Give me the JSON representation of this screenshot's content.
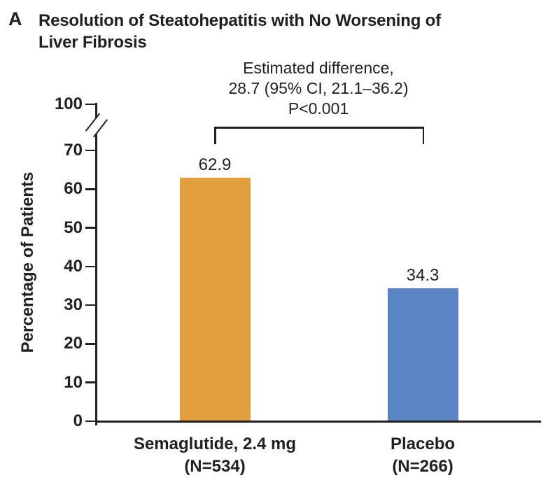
{
  "panel": {
    "label": "A",
    "title": "Resolution of Steatohepatitis with No Worsening of Liver Fibrosis"
  },
  "annotation": {
    "lines": [
      "Estimated difference,",
      "28.7 (95% CI, 21.1–36.2)",
      "P<0.001"
    ]
  },
  "bars": [
    {
      "label": "Semaglutide, 2.4 mg",
      "n": "(N=534)",
      "value": 62.9,
      "value_label": "62.9",
      "color": "#E29F3D"
    },
    {
      "label": "Placebo",
      "n": "(N=266)",
      "value": 34.3,
      "value_label": "34.3",
      "color": "#5B84C4"
    }
  ],
  "chart_data": {
    "type": "bar",
    "title": "Resolution of Steatohepatitis with No Worsening of Liver Fibrosis",
    "categories": [
      "Semaglutide, 2.4 mg (N=534)",
      "Placebo (N=266)"
    ],
    "values": [
      62.9,
      34.3
    ],
    "value_labels": [
      "62.9",
      "34.3"
    ],
    "xlabel": "",
    "ylabel": "Percentage of Patients",
    "ylim": [
      0,
      100
    ],
    "yticks": [
      0,
      10,
      20,
      30,
      40,
      50,
      60,
      70,
      100
    ],
    "y_axis_break_between": [
      70,
      100
    ],
    "bar_colors": [
      "#E29F3D",
      "#5B84C4"
    ],
    "annotations": [
      "Estimated difference,",
      "28.7 (95% CI, 21.1–36.2)",
      "P<0.001"
    ],
    "grid": false,
    "legend": "none",
    "axis_color": "#231f20"
  }
}
